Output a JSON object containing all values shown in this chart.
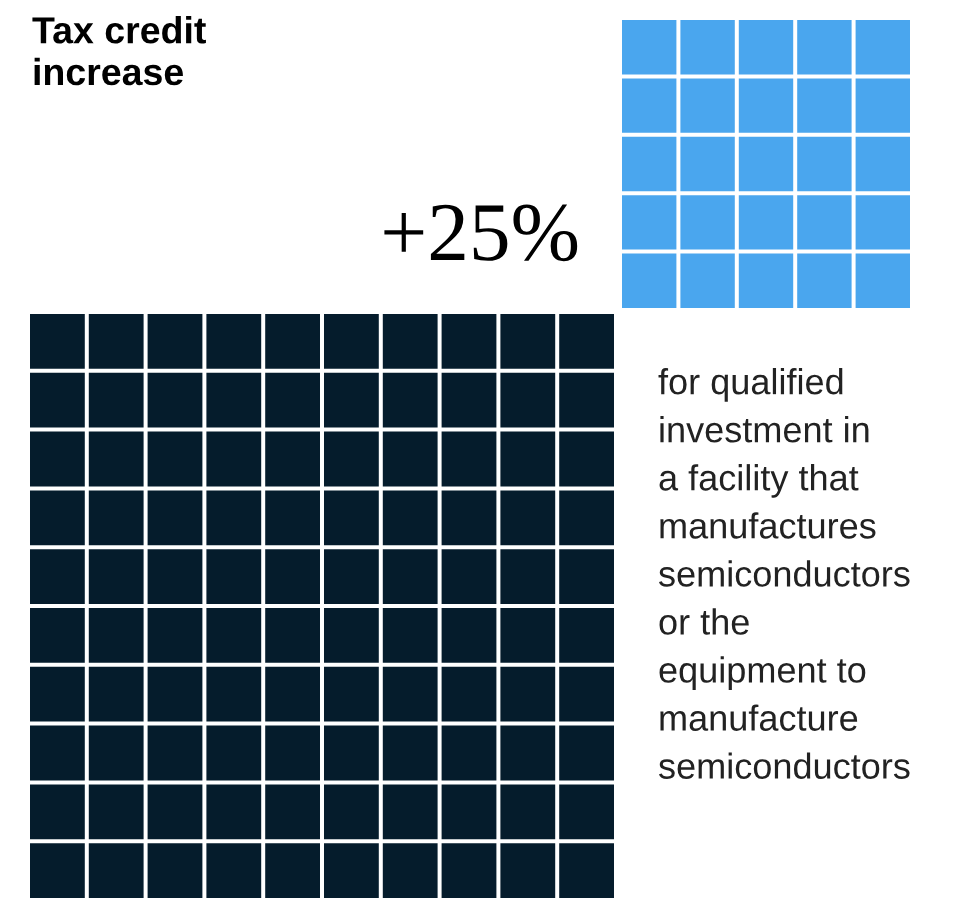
{
  "chart_data": {
    "type": "other",
    "title": "Tax credit\nincrease",
    "values": [
      25
    ],
    "colors": [
      "#4aa6ee"
    ],
    "value_labels": [
      "+25%"
    ],
    "annotations": [
      "for qualified\ninvestment in\na facility that\nmanufactures\nsemiconductors\nor the\nequipment to\nmanufacture\nsemiconductors"
    ]
  }
}
